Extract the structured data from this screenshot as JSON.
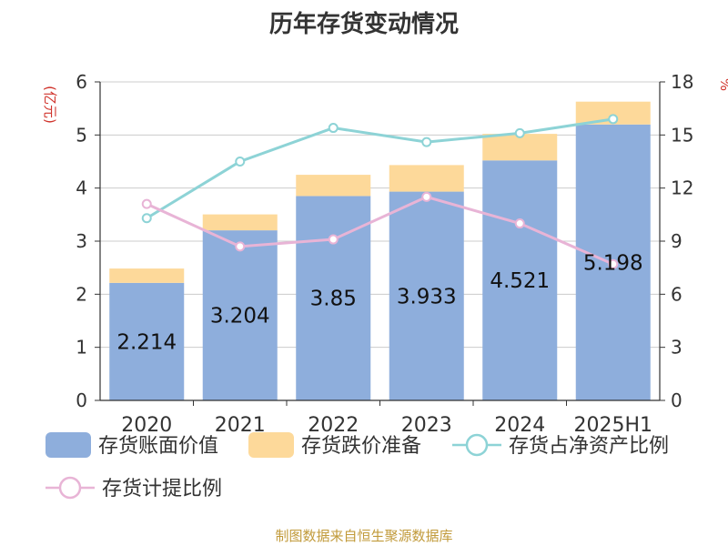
{
  "chart_data": {
    "type": "bar",
    "title": "历年存货变动情况",
    "categories": [
      "2020",
      "2021",
      "2022",
      "2023",
      "2024",
      "2025H1"
    ],
    "series": [
      {
        "name": "存货账面价值",
        "type": "bar",
        "axis": "left",
        "stack": "inventory",
        "color": "#8eaedc",
        "values": [
          2.214,
          3.204,
          3.85,
          3.933,
          4.521,
          5.198
        ]
      },
      {
        "name": "存货跌价准备",
        "type": "bar",
        "axis": "left",
        "stack": "inventory",
        "color": "#fdd99a",
        "values": [
          0.27,
          0.3,
          0.4,
          0.5,
          0.5,
          0.43
        ]
      },
      {
        "name": "存货占净资产比例",
        "type": "line",
        "axis": "right",
        "color": "#8dd3d6",
        "values": [
          10.3,
          13.5,
          15.4,
          14.6,
          15.1,
          15.9
        ]
      },
      {
        "name": "存货计提比例",
        "type": "line",
        "axis": "right",
        "color": "#e8b4d6",
        "values": [
          11.1,
          8.7,
          9.1,
          11.5,
          10.0,
          7.7
        ]
      }
    ],
    "data_labels": [
      "2.214",
      "3.204",
      "3.85",
      "3.933",
      "4.521",
      "5.198"
    ],
    "y_left": {
      "label": "(亿元)",
      "lim": [
        0,
        6
      ],
      "ticks": [
        "0",
        "1",
        "2",
        "3",
        "4",
        "5",
        "6"
      ]
    },
    "y_right": {
      "label": "%",
      "lim": [
        0,
        18
      ],
      "ticks": [
        "0",
        "3",
        "6",
        "9",
        "12",
        "15",
        "18"
      ]
    },
    "grid": true,
    "legend_position": "bottom"
  },
  "source": "制图数据来自恒生聚源数据库"
}
